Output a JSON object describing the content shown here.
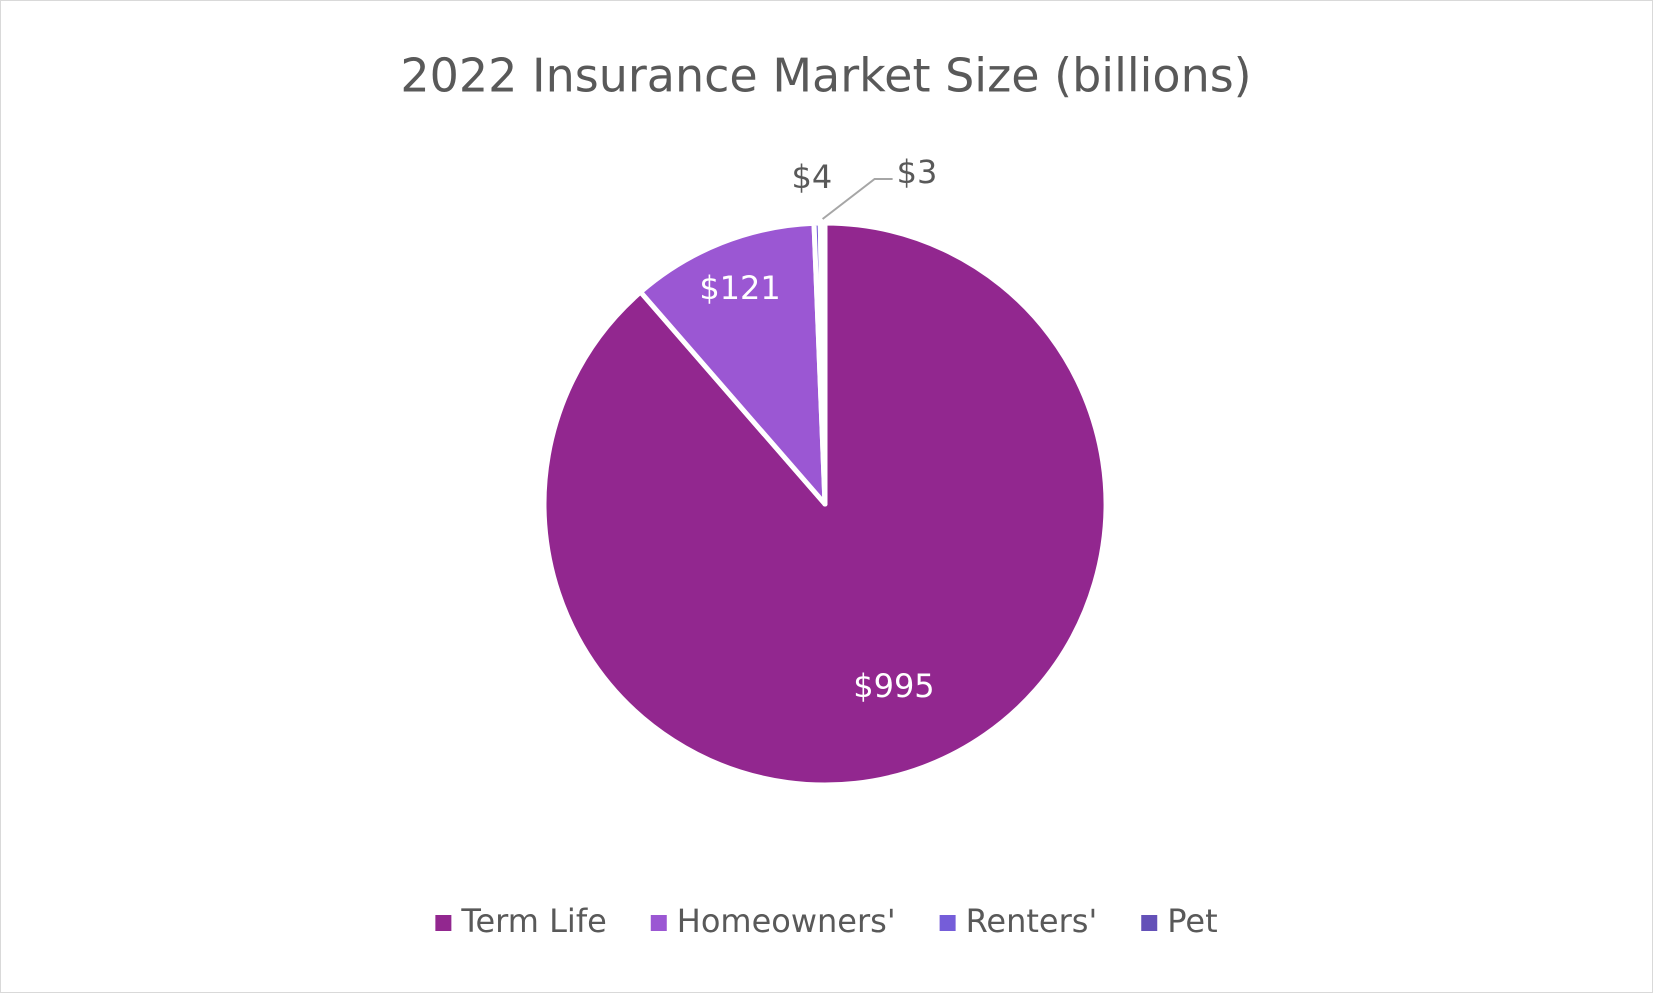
{
  "chart_data": {
    "type": "pie",
    "title": "2022 Insurance Market Size (billions)",
    "categories": [
      "Term Life",
      "Homeowners'",
      "Renters'",
      "Pet"
    ],
    "values": [
      995,
      121,
      4,
      3
    ],
    "value_labels": [
      "$995",
      "$121",
      "$4",
      "$3"
    ],
    "colors": [
      "#92278f",
      "#9b57d3",
      "#755dd9",
      "#6451b8"
    ],
    "legend": "bottom"
  }
}
